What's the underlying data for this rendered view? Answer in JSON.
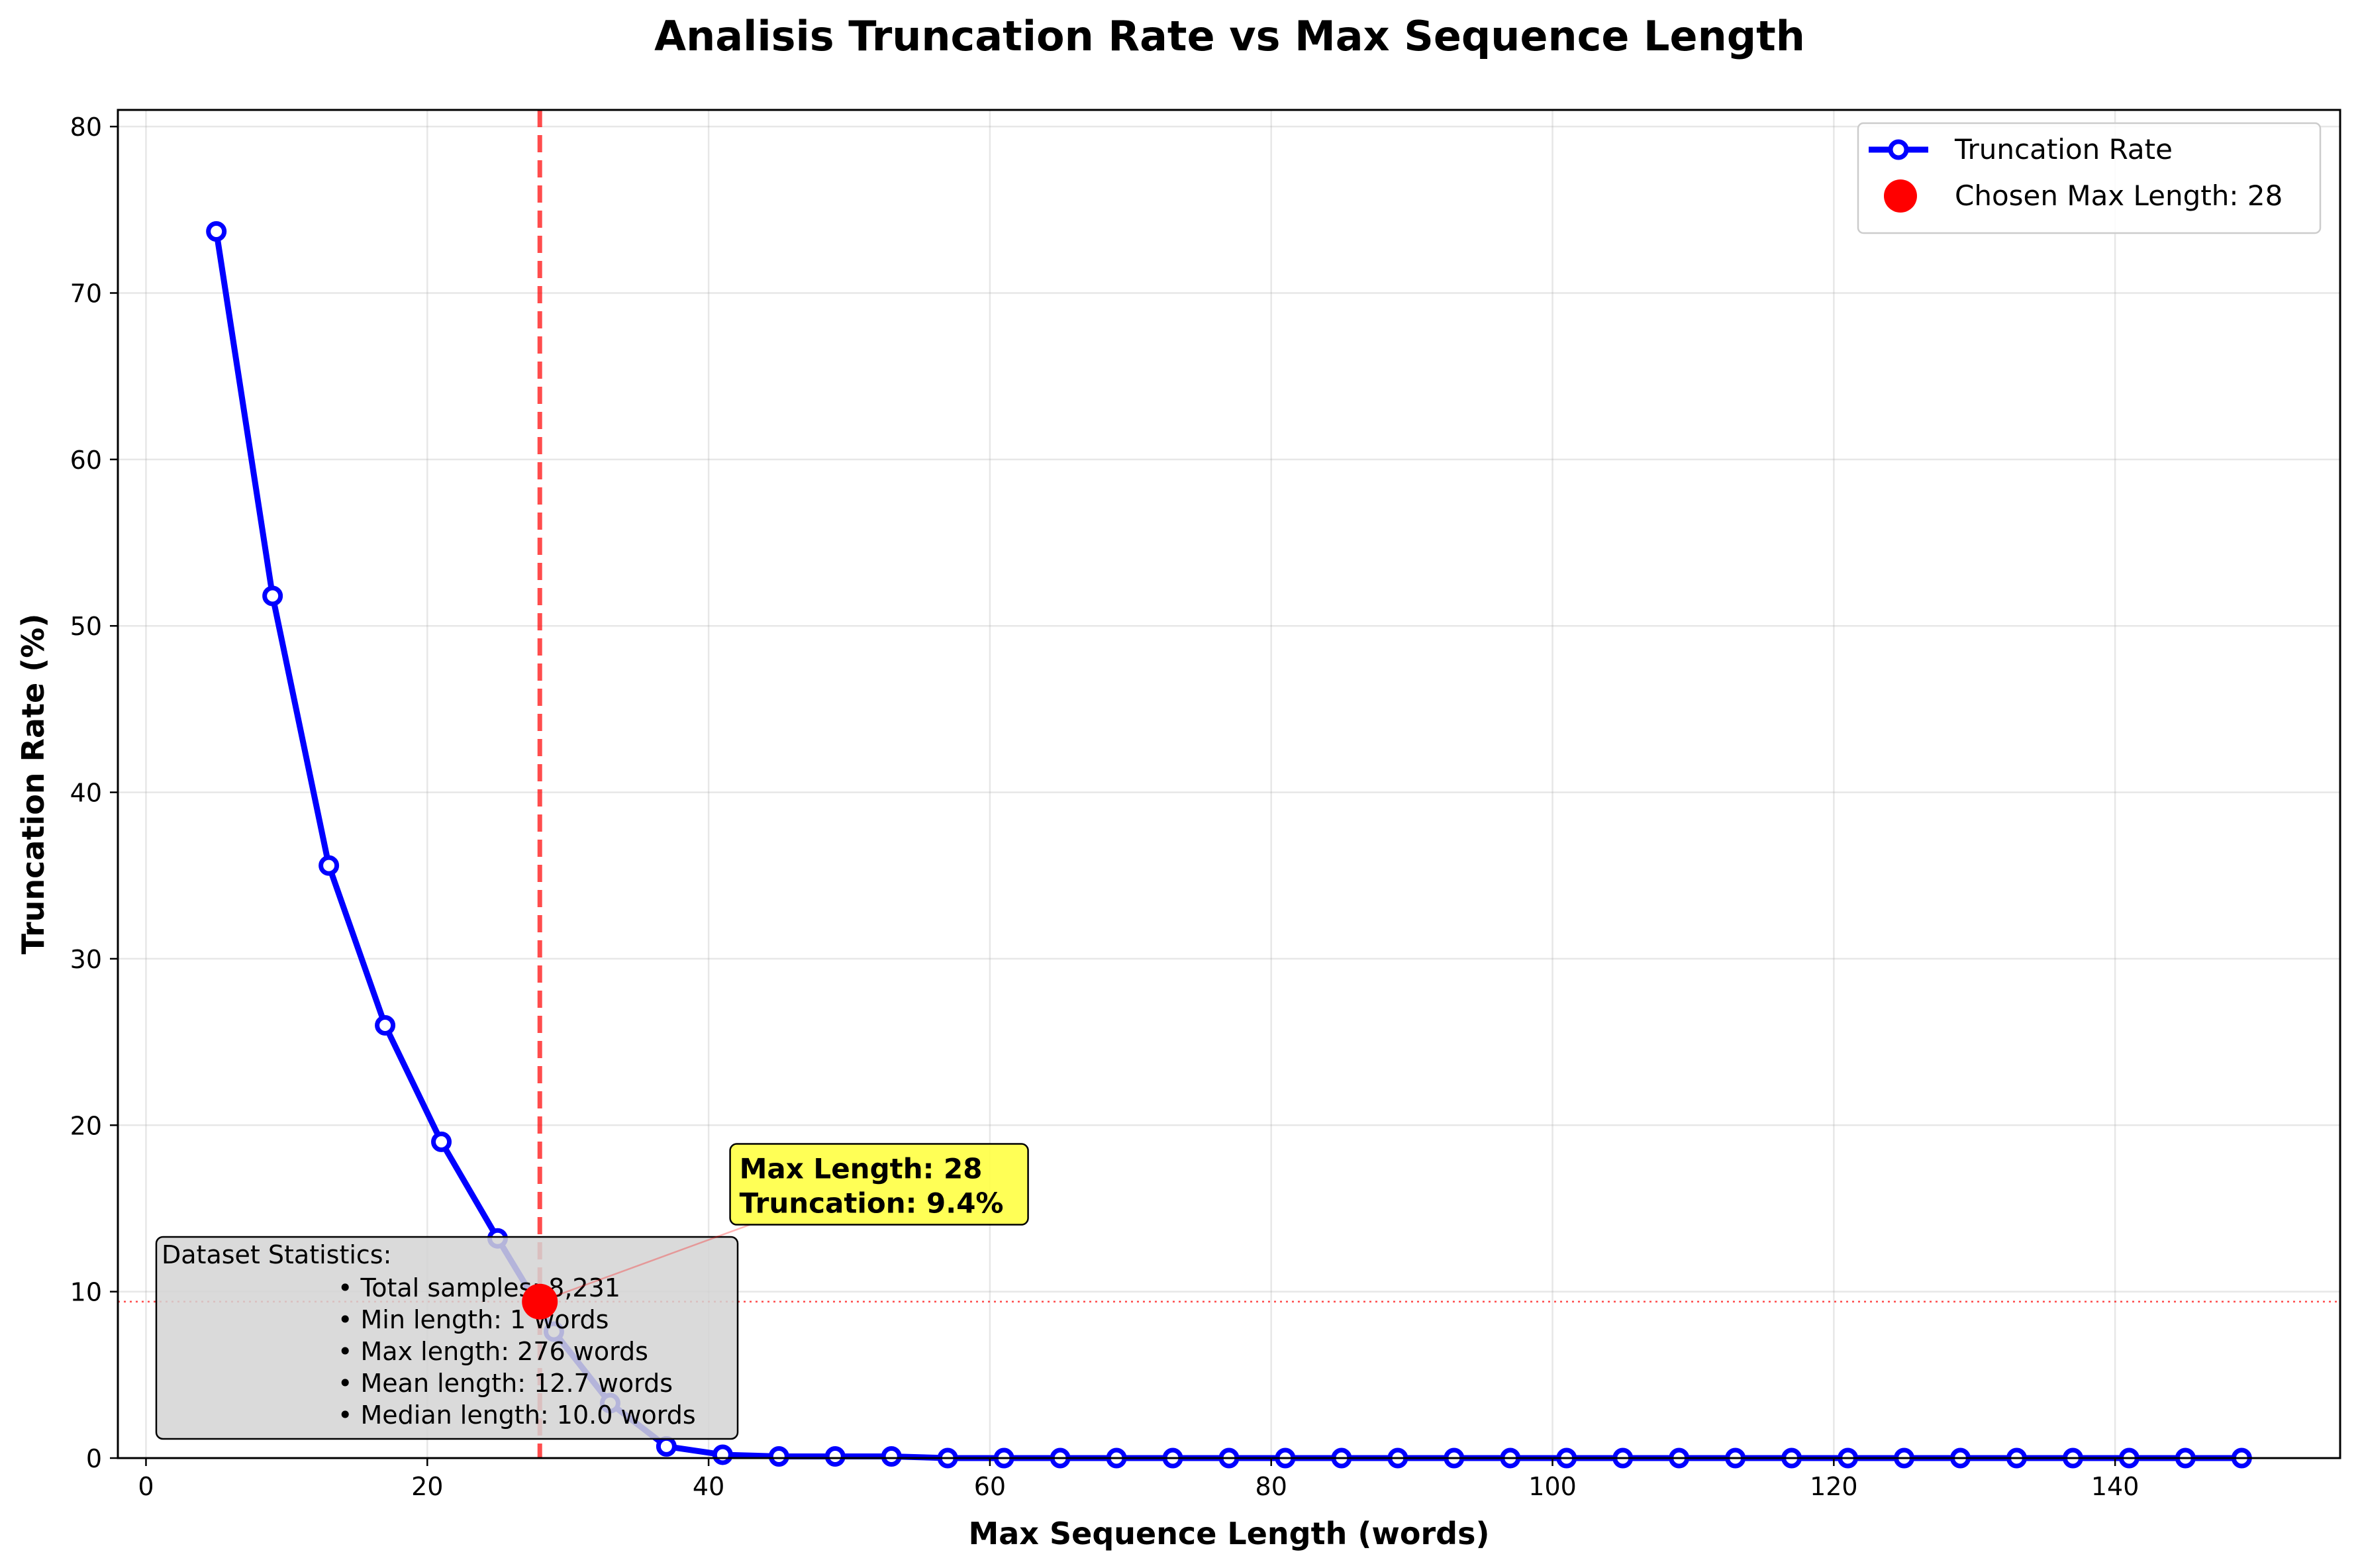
{
  "chart_data": {
    "type": "line",
    "title": "Analisis Truncation Rate vs Max Sequence Length",
    "xlabel": "Max Sequence Length (words)",
    "ylabel": "Truncation Rate (%)",
    "xlim": [
      -2,
      156
    ],
    "ylim": [
      0,
      81
    ],
    "xticks": [
      0,
      20,
      40,
      60,
      80,
      100,
      120,
      140
    ],
    "yticks": [
      0,
      10,
      20,
      30,
      40,
      50,
      60,
      70,
      80
    ],
    "grid": true,
    "legend_position": "top-right",
    "series": [
      {
        "name": "Truncation Rate",
        "color": "#0000ff",
        "x": [
          5,
          9,
          13,
          17,
          21,
          25,
          29,
          33,
          37,
          41,
          45,
          49,
          53,
          57,
          61,
          65,
          69,
          73,
          77,
          81,
          85,
          89,
          93,
          97,
          101,
          105,
          109,
          113,
          117,
          121,
          125,
          129,
          133,
          137,
          141,
          145,
          149
        ],
        "y": [
          73.7,
          51.8,
          35.6,
          26.0,
          19.0,
          13.2,
          7.6,
          3.3,
          0.7,
          0.2,
          0.1,
          0.1,
          0.1,
          0.0,
          0.0,
          0.0,
          0.0,
          0.0,
          0.0,
          0.0,
          0.0,
          0.0,
          0.0,
          0.0,
          0.0,
          0.0,
          0.0,
          0.0,
          0.0,
          0.0,
          0.0,
          0.0,
          0.0,
          0.0,
          0.0,
          0.0,
          0.0
        ]
      }
    ],
    "chosen_point": {
      "name": "Chosen Max Length: 28",
      "x": 28,
      "y": 9.4,
      "color": "#ff0000"
    },
    "annotation": {
      "lines": [
        "Max Length: 28",
        "Truncation: 9.4%"
      ],
      "x": 42,
      "y": 14.5,
      "background": "#ffff44"
    },
    "stats_box": {
      "heading": "Dataset Statistics:",
      "lines": [
        "• Total samples: 8,231",
        "• Min length: 1 words",
        "• Max length: 276 words",
        "• Mean length: 12.7 words",
        "• Median length: 10.0 words"
      ]
    }
  }
}
